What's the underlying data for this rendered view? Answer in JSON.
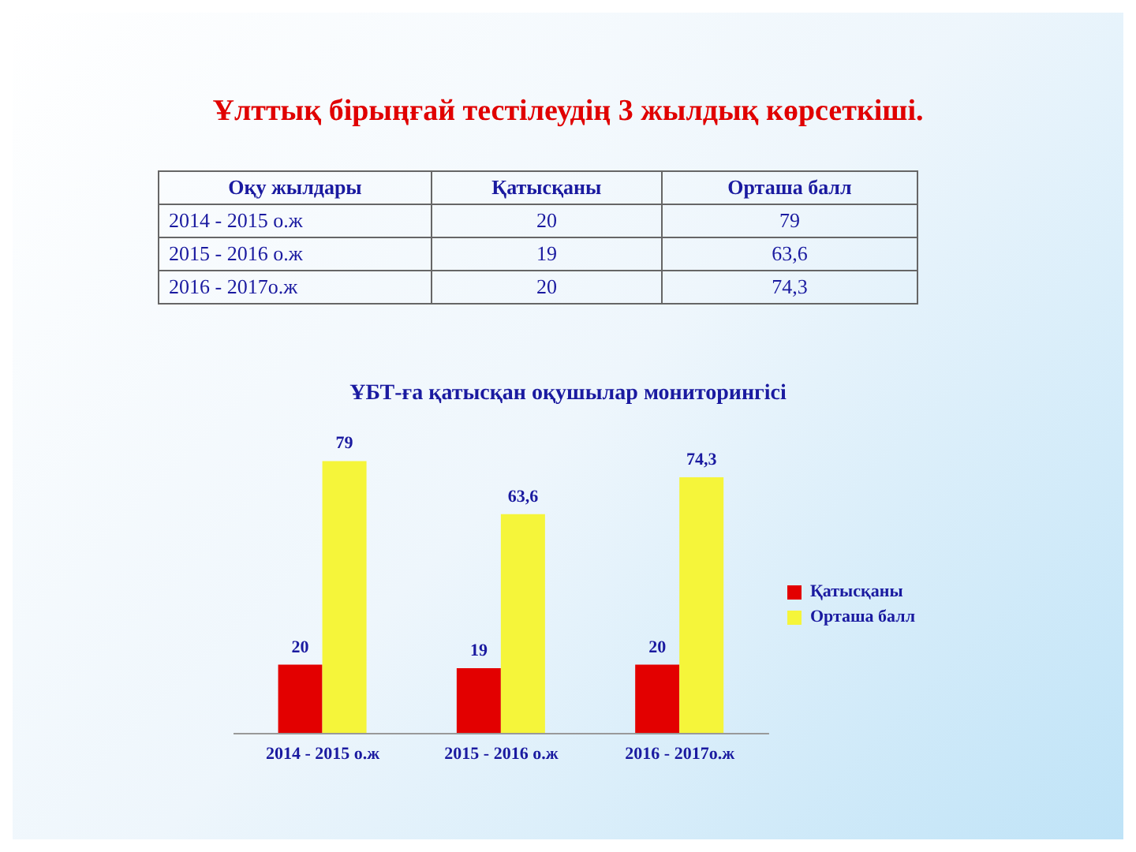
{
  "chart_data": {
    "type": "bar",
    "title": "Ұлттық бірыңғай тестілеудің 3 жылдық көрсеткіші.",
    "subtitle": "ҰБТ-ға қатысқан оқушылар мониторингісі",
    "annotations": [
      "Оқу жылдары"
    ],
    "categories": [
      "2014 - 2015 о.ж",
      "2015 - 2016 о.ж",
      "2016 - 2017о.ж"
    ],
    "series": [
      {
        "name": "Қатысқаны",
        "color": "#e30000",
        "values": [
          20,
          19,
          20
        ],
        "value_labels": [
          "20",
          "19",
          "20"
        ]
      },
      {
        "name": "Орташа балл",
        "color": "#f5f53a",
        "values": [
          79,
          63.6,
          74.3
        ],
        "value_labels": [
          "79",
          "63,6",
          "74,3"
        ]
      }
    ],
    "data_labels": true,
    "legend": "right",
    "grid": false
  }
}
